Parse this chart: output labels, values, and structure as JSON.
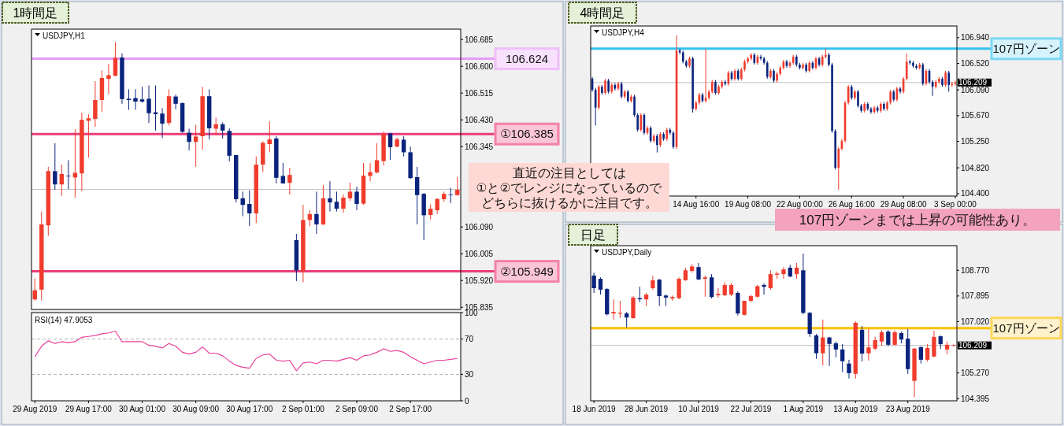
{
  "chart_data": [
    {
      "type": "candlestick",
      "title": "1時間足",
      "subtitle": "USDJPY,H1",
      "tick_labels": "y",
      "categories": [
        null,
        null,
        null,
        null,
        null,
        null,
        null,
        null,
        null,
        null,
        null,
        null,
        null,
        null,
        null,
        null,
        null,
        null,
        null,
        null,
        null,
        null,
        null,
        null,
        null,
        null,
        null,
        null,
        null,
        null,
        null,
        null,
        null,
        null,
        null,
        null,
        null,
        null,
        null,
        null,
        null,
        null,
        null,
        null,
        null,
        null,
        null,
        null,
        null,
        null,
        null,
        null,
        null,
        null,
        null,
        null,
        null,
        null,
        null,
        null,
        null,
        null,
        null,
        null
      ],
      "ohlc": [
        [
          105.86,
          105.927,
          105.856,
          105.889
        ],
        [
          105.891,
          106.139,
          105.856,
          106.098
        ],
        [
          106.095,
          106.281,
          106.062,
          106.267
        ],
        [
          106.267,
          106.356,
          106.208,
          106.225
        ],
        [
          106.225,
          106.288,
          106.189,
          106.258
        ],
        [
          106.253,
          106.302,
          106.21,
          106.252
        ],
        [
          106.247,
          106.4,
          106.183,
          106.262
        ],
        [
          106.26,
          106.453,
          106.204,
          106.43
        ],
        [
          106.427,
          106.448,
          106.31,
          106.435
        ],
        [
          106.433,
          106.553,
          106.408,
          106.493
        ],
        [
          106.493,
          106.587,
          106.456,
          106.563
        ],
        [
          106.56,
          106.607,
          106.512,
          106.572
        ],
        [
          106.57,
          106.677,
          106.568,
          106.627
        ],
        [
          106.628,
          106.641,
          106.481,
          106.496
        ],
        [
          106.497,
          106.527,
          106.462,
          106.493
        ],
        [
          106.499,
          106.527,
          106.462,
          106.488
        ],
        [
          106.495,
          106.535,
          106.485,
          106.488
        ],
        [
          106.497,
          106.539,
          106.42,
          106.451
        ],
        [
          106.454,
          106.539,
          106.396,
          106.448
        ],
        [
          106.45,
          106.467,
          106.372,
          106.418
        ],
        [
          106.42,
          106.527,
          106.412,
          106.505
        ],
        [
          106.504,
          106.51,
          106.464,
          106.481
        ],
        [
          106.483,
          106.485,
          106.389,
          106.392
        ],
        [
          106.389,
          106.402,
          106.333,
          106.36
        ],
        [
          106.36,
          106.414,
          106.281,
          106.377
        ],
        [
          106.378,
          106.535,
          106.335,
          106.505
        ],
        [
          106.505,
          106.527,
          106.368,
          106.403
        ],
        [
          106.402,
          106.437,
          106.381,
          106.416
        ],
        [
          106.416,
          106.422,
          106.371,
          106.396
        ],
        [
          106.395,
          106.403,
          106.298,
          106.316
        ],
        [
          106.318,
          106.318,
          106.168,
          106.178
        ],
        [
          106.181,
          106.202,
          106.124,
          106.16
        ],
        [
          106.163,
          106.206,
          106.093,
          106.133
        ],
        [
          106.133,
          106.314,
          106.102,
          106.288
        ],
        [
          106.288,
          106.362,
          106.264,
          106.357
        ],
        [
          106.353,
          106.425,
          106.327,
          106.368
        ],
        [
          106.371,
          106.378,
          106.228,
          106.246
        ],
        [
          106.252,
          106.293,
          106.228,
          106.228
        ],
        [
          106.23,
          106.278,
          106.193,
          106.255
        ],
        [
          106.048,
          106.068,
          105.918,
          105.952
        ],
        [
          105.95,
          106.16,
          105.914,
          106.112
        ],
        [
          106.112,
          106.143,
          106.092,
          106.131
        ],
        [
          106.131,
          106.202,
          106.068,
          106.098
        ],
        [
          106.098,
          106.223,
          106.096,
          106.181
        ],
        [
          106.181,
          106.235,
          106.139,
          106.168
        ],
        [
          106.17,
          106.202,
          106.139,
          106.148
        ],
        [
          106.148,
          106.193,
          106.135,
          106.183
        ],
        [
          106.181,
          106.231,
          106.173,
          106.202
        ],
        [
          106.202,
          106.218,
          106.143,
          106.163
        ],
        [
          106.164,
          106.293,
          106.16,
          106.253
        ],
        [
          106.252,
          106.293,
          106.235,
          106.264
        ],
        [
          106.263,
          106.356,
          106.26,
          106.302
        ],
        [
          106.299,
          106.393,
          106.285,
          106.385
        ],
        [
          106.387,
          106.389,
          106.303,
          106.343
        ],
        [
          106.345,
          106.374,
          106.343,
          106.368
        ],
        [
          106.367,
          106.378,
          106.314,
          106.327
        ],
        [
          106.327,
          106.345,
          106.243,
          106.245
        ],
        [
          106.248,
          106.281,
          106.098,
          106.191
        ],
        [
          106.195,
          106.198,
          106.048,
          106.127
        ],
        [
          106.128,
          106.162,
          106.114,
          106.148
        ],
        [
          106.143,
          106.181,
          106.131,
          106.179
        ],
        [
          106.178,
          106.202,
          106.17,
          106.195
        ],
        [
          106.193,
          106.214,
          106.166,
          106.192
        ],
        [
          106.191,
          106.248,
          106.189,
          106.208
        ]
      ],
      "colors": [
        "#f03c2d",
        "#f03c2d",
        "#f03c2d",
        "#0a237d",
        "#f03c2d",
        "#0a237d",
        "#f03c2d",
        "#f03c2d",
        "#f03c2d",
        "#f03c2d",
        "#f03c2d",
        "#f03c2d",
        "#f03c2d",
        "#0a237d",
        "#0a237d",
        "#0a237d",
        "#0a237d",
        "#0a237d",
        "#0a237d",
        "#0a237d",
        "#f03c2d",
        "#0a237d",
        "#0a237d",
        "#0a237d",
        "#f03c2d",
        "#f03c2d",
        "#0a237d",
        "#f03c2d",
        "#0a237d",
        "#0a237d",
        "#0a237d",
        "#0a237d",
        "#0a237d",
        "#f03c2d",
        "#f03c2d",
        "#f03c2d",
        "#0a237d",
        "#0a237d",
        "#f03c2d",
        "#0a237d",
        "#f03c2d",
        "#f03c2d",
        "#0a237d",
        "#f03c2d",
        "#0a237d",
        "#0a237d",
        "#f03c2d",
        "#f03c2d",
        "#0a237d",
        "#f03c2d",
        "#f03c2d",
        "#f03c2d",
        "#f03c2d",
        "#0a237d",
        "#f03c2d",
        "#0a237d",
        "#0a237d",
        "#0a237d",
        "#0a237d",
        "#f03c2d",
        "#f03c2d",
        "#f03c2d",
        "#0a237d",
        "#f03c2d"
      ],
      "ylim": [
        105.828,
        106.718
      ],
      "yticks": [
        106.685,
        {
          "value": 106.6,
          "label": "106.600"
        },
        106.515,
        {
          "value": 106.43,
          "label": "106.430"
        },
        106.345,
        {
          "value": 106.09,
          "label": "106.090"
        },
        106.005,
        {
          "value": 105.92,
          "label": "105.920"
        },
        105.835
      ],
      "ref_lines": [
        {
          "axis": "y",
          "value": 106.209,
          "color": "#c0c0c0"
        },
        {
          "axis": "y",
          "value": 106.624,
          "label": "106.624",
          "color": "#e69cf5"
        },
        {
          "axis": "y",
          "value": 106.385,
          "label": "①106.385",
          "color": "#ec3d7a"
        },
        {
          "axis": "y",
          "value": 105.949,
          "label": "②105.949",
          "color": "#ec3d7a"
        }
      ],
      "annotations": [
        "直近の注目としては",
        "①と②でレンジになっているので",
        "どちらに抜けるかに注目です。"
      ]
    },
    {
      "type": "line",
      "title": "RSI(14) 47.9053",
      "categories": [
        "29 Aug 2019",
        null,
        null,
        null,
        null,
        null,
        null,
        null,
        "29 Aug 17:00",
        null,
        null,
        null,
        null,
        null,
        null,
        null,
        "30 Aug 01:00",
        null,
        null,
        null,
        null,
        null,
        null,
        null,
        "30 Aug 09:00",
        null,
        null,
        null,
        null,
        null,
        null,
        null,
        "30 Aug 17:00",
        null,
        null,
        null,
        null,
        null,
        null,
        null,
        "2 Sep 01:00",
        null,
        null,
        null,
        null,
        null,
        null,
        null,
        "2 Sep 09:00",
        null,
        null,
        null,
        null,
        null,
        null,
        null,
        "2 Sep 17:00",
        null,
        null,
        null,
        null,
        null,
        null,
        null
      ],
      "series": [
        {
          "color": "#e8409a",
          "values": [
            50,
            62,
            68,
            65,
            67,
            66,
            67,
            72,
            73,
            74,
            76,
            77,
            79,
            67,
            67,
            67,
            67,
            63,
            62,
            60,
            65,
            62,
            55,
            53,
            55,
            61,
            54,
            54,
            51,
            45,
            40,
            38,
            37,
            48,
            52,
            53,
            46,
            45,
            46,
            34,
            43,
            44,
            42,
            46,
            46,
            45,
            47,
            49,
            46,
            51,
            52,
            55,
            59,
            56,
            57,
            55,
            50,
            46,
            42,
            44,
            46,
            46,
            47,
            48
          ]
        }
      ],
      "ylim": [
        0,
        100
      ],
      "yticks": [
        0,
        30,
        70,
        100
      ],
      "ref_lines": [
        {
          "axis": "y",
          "value": 70,
          "color": "#b0b0b0",
          "line_style": "dashed"
        },
        {
          "axis": "y",
          "value": 30,
          "color": "#b0b0b0",
          "line_style": "dashed"
        }
      ]
    },
    {
      "type": "candlestick",
      "title": "4時間足",
      "subtitle": "USDJPY,H4",
      "categories": [
        null,
        null,
        null,
        null,
        null,
        null,
        null,
        null,
        null,
        null,
        null,
        null,
        null,
        null,
        null,
        null,
        null,
        null,
        null,
        null,
        null,
        null,
        null,
        null,
        null,
        null,
        null,
        null,
        null,
        null,
        null,
        null,
        "14 Aug 16:00",
        null,
        null,
        null,
        null,
        null,
        null,
        null,
        null,
        null,
        null,
        null,
        null,
        null,
        null,
        null,
        "19 Aug 08:00",
        null,
        null,
        null,
        null,
        null,
        null,
        null,
        null,
        null,
        null,
        null,
        null,
        null,
        null,
        null,
        "22 Aug 00:00",
        null,
        null,
        null,
        null,
        null,
        null,
        null,
        null,
        null,
        null,
        null,
        null,
        null,
        null,
        null,
        "26 Aug 16:00",
        null,
        null,
        null,
        null,
        null,
        null,
        null,
        null,
        null,
        null,
        null,
        null,
        null,
        null,
        null,
        "29 Aug 08:00",
        null,
        null,
        null,
        null,
        null,
        null,
        null,
        null,
        null,
        null,
        null,
        null,
        null,
        null,
        null,
        "3 Sep 00:00"
      ],
      "ohlc": [
        [
          106.27,
          106.3,
          106.06,
          106.09
        ],
        [
          106.09,
          106.12,
          105.51,
          105.8
        ],
        [
          105.8,
          106.17,
          105.77,
          106.14
        ],
        [
          106.14,
          106.17,
          106.01,
          106.04
        ],
        [
          106.04,
          106.27,
          106.01,
          106.24
        ],
        [
          106.24,
          106.27,
          106.03,
          106.06
        ],
        [
          106.06,
          106.2,
          106.03,
          106.17
        ],
        [
          106.17,
          106.2,
          106.08,
          106.11
        ],
        [
          106.11,
          106.22,
          106.08,
          106.19
        ],
        [
          106.19,
          106.22,
          105.95,
          105.98
        ],
        [
          105.98,
          106.09,
          105.95,
          106.06
        ],
        [
          106.06,
          106.09,
          105.88,
          105.91
        ],
        [
          105.91,
          106.01,
          105.88,
          105.98
        ],
        [
          105.98,
          106.01,
          105.65,
          105.68
        ],
        [
          105.68,
          105.71,
          105.41,
          105.44
        ],
        [
          105.44,
          105.71,
          105.41,
          105.68
        ],
        [
          105.68,
          105.71,
          105.36,
          105.39
        ],
        [
          105.39,
          105.5,
          105.36,
          105.47
        ],
        [
          105.47,
          105.5,
          105.23,
          105.26
        ],
        [
          105.26,
          105.37,
          105.23,
          105.34
        ],
        [
          105.34,
          105.37,
          105.07,
          105.19
        ],
        [
          105.19,
          105.4,
          105.16,
          105.37
        ],
        [
          105.37,
          105.4,
          105.26,
          105.29
        ],
        [
          105.29,
          105.47,
          105.26,
          105.44
        ],
        [
          105.44,
          105.47,
          105.36,
          105.39
        ],
        [
          105.39,
          105.42,
          105.13,
          105.16
        ],
        [
          105.16,
          106.98,
          105.13,
          106.73
        ],
        [
          106.73,
          106.76,
          106.67,
          106.7
        ],
        [
          106.7,
          106.73,
          106.52,
          106.55
        ],
        [
          106.55,
          106.58,
          106.45,
          106.48
        ],
        [
          106.48,
          106.63,
          106.45,
          106.6
        ],
        [
          106.6,
          106.63,
          105.72,
          105.78
        ],
        [
          105.78,
          105.91,
          105.75,
          105.88
        ],
        [
          105.88,
          106.04,
          105.85,
          106.01
        ],
        [
          106.01,
          106.04,
          105.88,
          105.91
        ],
        [
          105.91,
          106.76,
          105.88,
          105.96
        ],
        [
          105.96,
          106.09,
          105.93,
          106.06
        ],
        [
          106.06,
          106.25,
          106.03,
          106.22
        ],
        [
          106.22,
          106.25,
          106.01,
          106.04
        ],
        [
          106.04,
          106.17,
          106.01,
          106.14
        ],
        [
          106.14,
          106.25,
          106.11,
          106.22
        ],
        [
          106.22,
          106.25,
          106.16,
          106.19
        ],
        [
          106.19,
          106.4,
          106.16,
          106.37
        ],
        [
          106.37,
          106.4,
          106.24,
          106.27
        ],
        [
          106.27,
          106.43,
          106.24,
          106.4
        ],
        [
          106.4,
          106.43,
          106.24,
          106.27
        ],
        [
          106.27,
          106.45,
          106.24,
          106.42
        ],
        [
          106.42,
          106.58,
          106.39,
          106.55
        ],
        [
          106.55,
          106.63,
          106.52,
          106.6
        ],
        [
          106.6,
          106.69,
          106.57,
          106.66
        ],
        [
          106.66,
          106.69,
          106.5,
          106.53
        ],
        [
          106.53,
          106.66,
          106.5,
          106.63
        ],
        [
          106.63,
          106.66,
          106.57,
          106.6
        ],
        [
          106.6,
          106.63,
          106.5,
          106.53
        ],
        [
          106.53,
          106.56,
          106.27,
          106.3
        ],
        [
          106.3,
          106.43,
          106.27,
          106.4
        ],
        [
          106.4,
          106.43,
          106.21,
          106.24
        ],
        [
          106.24,
          106.38,
          106.21,
          106.35
        ],
        [
          106.35,
          106.48,
          106.32,
          106.45
        ],
        [
          106.45,
          106.58,
          106.42,
          106.55
        ],
        [
          106.55,
          106.58,
          106.45,
          106.48
        ],
        [
          106.48,
          106.56,
          106.45,
          106.53
        ],
        [
          106.53,
          106.66,
          106.5,
          106.63
        ],
        [
          106.63,
          106.66,
          106.47,
          106.5
        ],
        [
          106.5,
          106.53,
          106.42,
          106.45
        ],
        [
          106.45,
          106.53,
          106.42,
          106.5
        ],
        [
          106.5,
          106.53,
          106.37,
          106.4
        ],
        [
          106.4,
          106.56,
          106.37,
          106.53
        ],
        [
          106.53,
          106.56,
          106.42,
          106.45
        ],
        [
          106.45,
          106.63,
          106.42,
          106.6
        ],
        [
          106.6,
          106.63,
          106.47,
          106.5
        ],
        [
          106.5,
          106.66,
          106.47,
          106.63
        ],
        [
          106.63,
          106.76,
          106.6,
          106.66
        ],
        [
          106.66,
          106.69,
          106.47,
          106.5
        ],
        [
          106.5,
          106.53,
          105.39,
          105.42
        ],
        [
          105.42,
          105.45,
          104.79,
          104.82
        ],
        [
          104.82,
          105.16,
          104.46,
          105.13
        ],
        [
          105.13,
          105.29,
          105.1,
          105.26
        ],
        [
          105.26,
          105.91,
          105.23,
          105.88
        ],
        [
          105.88,
          106.17,
          105.85,
          106.14
        ],
        [
          106.14,
          106.17,
          105.93,
          105.96
        ],
        [
          105.96,
          106.09,
          105.93,
          106.06
        ],
        [
          106.06,
          106.09,
          105.8,
          105.83
        ],
        [
          105.83,
          105.86,
          105.72,
          105.75
        ],
        [
          105.75,
          105.89,
          105.72,
          105.86
        ],
        [
          105.86,
          105.89,
          105.75,
          105.78
        ],
        [
          105.78,
          105.81,
          105.7,
          105.73
        ],
        [
          105.73,
          105.83,
          105.7,
          105.8
        ],
        [
          105.8,
          105.83,
          105.72,
          105.75
        ],
        [
          105.75,
          105.89,
          105.72,
          105.86
        ],
        [
          105.86,
          105.89,
          105.75,
          105.78
        ],
        [
          105.78,
          105.91,
          105.75,
          105.88
        ],
        [
          105.88,
          106.09,
          105.85,
          106.06
        ],
        [
          106.06,
          106.09,
          105.9,
          105.93
        ],
        [
          105.93,
          106.14,
          105.9,
          106.11
        ],
        [
          106.11,
          106.14,
          106.03,
          106.06
        ],
        [
          106.06,
          106.3,
          106.03,
          106.27
        ],
        [
          106.27,
          106.68,
          106.24,
          106.55
        ],
        [
          106.55,
          106.58,
          106.5,
          106.53
        ],
        [
          106.53,
          106.56,
          106.45,
          106.48
        ],
        [
          106.48,
          106.51,
          106.42,
          106.45
        ],
        [
          106.45,
          106.53,
          106.42,
          106.5
        ],
        [
          106.5,
          106.53,
          106.16,
          106.19
        ],
        [
          106.19,
          106.43,
          106.16,
          106.4
        ],
        [
          106.4,
          106.43,
          106.19,
          106.22
        ],
        [
          106.22,
          106.25,
          105.99,
          106.14
        ],
        [
          106.14,
          106.25,
          106.11,
          106.22
        ],
        [
          106.22,
          106.3,
          106.19,
          106.27
        ],
        [
          106.27,
          106.3,
          106.14,
          106.17
        ],
        [
          106.17,
          106.4,
          106.14,
          106.37
        ],
        [
          106.37,
          106.4,
          106.06,
          106.17
        ],
        [
          106.17,
          106.22,
          106.14,
          106.19
        ],
        [
          106.19,
          106.24,
          106.16,
          106.21
        ]
      ],
      "colors": [
        "#0a237d",
        "#0a237d",
        "#f03c2d",
        "#0a237d",
        "#f03c2d",
        "#0a237d",
        "#f03c2d",
        "#0a237d",
        "#f03c2d",
        "#0a237d",
        "#f03c2d",
        "#0a237d",
        "#f03c2d",
        "#0a237d",
        "#0a237d",
        "#f03c2d",
        "#0a237d",
        "#f03c2d",
        "#0a237d",
        "#f03c2d",
        "#0a237d",
        "#f03c2d",
        "#0a237d",
        "#f03c2d",
        "#0a237d",
        "#0a237d",
        "#f03c2d",
        "#0a237d",
        "#0a237d",
        "#0a237d",
        "#f03c2d",
        "#0a237d",
        "#f03c2d",
        "#f03c2d",
        "#0a237d",
        "#f03c2d",
        "#f03c2d",
        "#f03c2d",
        "#0a237d",
        "#f03c2d",
        "#f03c2d",
        "#0a237d",
        "#f03c2d",
        "#0a237d",
        "#f03c2d",
        "#0a237d",
        "#f03c2d",
        "#f03c2d",
        "#f03c2d",
        "#f03c2d",
        "#0a237d",
        "#f03c2d",
        "#0a237d",
        "#0a237d",
        "#0a237d",
        "#f03c2d",
        "#0a237d",
        "#f03c2d",
        "#f03c2d",
        "#f03c2d",
        "#0a237d",
        "#f03c2d",
        "#f03c2d",
        "#0a237d",
        "#0a237d",
        "#f03c2d",
        "#0a237d",
        "#f03c2d",
        "#0a237d",
        "#f03c2d",
        "#0a237d",
        "#f03c2d",
        "#f03c2d",
        "#0a237d",
        "#0a237d",
        "#0a237d",
        "#f03c2d",
        "#f03c2d",
        "#f03c2d",
        "#f03c2d",
        "#0a237d",
        "#f03c2d",
        "#0a237d",
        "#0a237d",
        "#f03c2d",
        "#0a237d",
        "#0a237d",
        "#f03c2d",
        "#0a237d",
        "#f03c2d",
        "#0a237d",
        "#f03c2d",
        "#f03c2d",
        "#0a237d",
        "#f03c2d",
        "#0a237d",
        "#f03c2d",
        "#f03c2d",
        "#0a237d",
        "#0a237d",
        "#0a237d",
        "#f03c2d",
        "#0a237d",
        "#f03c2d",
        "#0a237d",
        "#0a237d",
        "#f03c2d",
        "#f03c2d",
        "#0a237d",
        "#f03c2d",
        "#0a237d",
        "#f03c2d",
        "#f03c2d"
      ],
      "ylim": [
        104.36,
        107.13
      ],
      "yticks": [
        {
          "value": 106.94,
          "label": "106.940"
        },
        {
          "value": 106.52,
          "label": "106.520"
        },
        {
          "value": 106.09,
          "label": "106.090"
        },
        {
          "value": 105.67,
          "label": "105.670"
        },
        {
          "value": 105.25,
          "label": "105.250"
        },
        {
          "value": 104.82,
          "label": "104.820"
        },
        {
          "value": 104.4,
          "label": "104.400"
        }
      ],
      "ref_lines": [
        {
          "axis": "y",
          "value": 106.209,
          "label": "106.209",
          "color": "#c0c0c0"
        },
        {
          "axis": "y",
          "value": 106.76,
          "label": "107円ゾーン",
          "color": "#33c3f0"
        }
      ],
      "annotations": [
        "107円ゾーンまでは上昇の可能性あり。"
      ]
    },
    {
      "type": "candlestick",
      "title": "日足",
      "subtitle": "USDJPY,Daily",
      "categories": [
        "18 Jun 2019",
        null,
        null,
        null,
        null,
        null,
        null,
        null,
        "28 Jun 2019",
        null,
        null,
        null,
        null,
        null,
        null,
        null,
        "10 Jul 2019",
        null,
        null,
        null,
        null,
        null,
        null,
        null,
        "22 Jul 2019",
        null,
        null,
        null,
        null,
        null,
        null,
        null,
        "1 Aug 2019",
        null,
        null,
        null,
        null,
        null,
        null,
        null,
        "13 Aug 2019",
        null,
        null,
        null,
        null,
        null,
        null,
        null,
        "23 Aug 2019",
        null,
        null,
        null,
        null,
        null,
        null,
        null
      ],
      "ohlc": [
        [
          108.59,
          108.69,
          108.0,
          108.16
        ],
        [
          108.48,
          108.53,
          107.94,
          108.11
        ],
        [
          108.13,
          108.16,
          107.23,
          107.27
        ],
        [
          107.3,
          107.78,
          107.09,
          107.35
        ],
        [
          107.29,
          107.73,
          107.14,
          107.32
        ],
        [
          107.3,
          107.35,
          106.82,
          107.16
        ],
        [
          107.14,
          107.89,
          107.12,
          107.84
        ],
        [
          107.82,
          108.21,
          107.68,
          107.78
        ],
        [
          107.78,
          108.0,
          107.55,
          107.94
        ],
        [
          108.16,
          108.59,
          108.11,
          108.43
        ],
        [
          108.45,
          108.48,
          107.55,
          107.89
        ],
        [
          107.91,
          107.94,
          107.55,
          107.84
        ],
        [
          107.81,
          107.91,
          107.73,
          107.86
        ],
        [
          107.82,
          108.53,
          107.78,
          108.48
        ],
        [
          108.43,
          108.86,
          108.41,
          108.77
        ],
        [
          108.75,
          108.98,
          108.69,
          108.9
        ],
        [
          108.88,
          109.02,
          108.43,
          108.46
        ],
        [
          108.48,
          108.59,
          107.87,
          108.53
        ],
        [
          108.53,
          108.64,
          107.81,
          107.86
        ],
        [
          107.92,
          108.16,
          107.84,
          107.97
        ],
        [
          107.92,
          108.37,
          107.89,
          108.27
        ],
        [
          107.94,
          108.34,
          107.89,
          108.27
        ],
        [
          108.0,
          108.05,
          107.23,
          107.3
        ],
        [
          107.25,
          107.73,
          107.23,
          107.73
        ],
        [
          107.73,
          107.94,
          107.68,
          107.89
        ],
        [
          107.87,
          108.27,
          107.84,
          108.23
        ],
        [
          108.27,
          108.32,
          107.94,
          108.21
        ],
        [
          108.16,
          108.77,
          108.11,
          108.64
        ],
        [
          108.62,
          108.73,
          108.48,
          108.66
        ],
        [
          108.64,
          108.88,
          108.48,
          108.8
        ],
        [
          108.86,
          108.96,
          108.53,
          108.56
        ],
        [
          108.64,
          109.02,
          108.48,
          108.86
        ],
        [
          108.77,
          109.34,
          107.27,
          107.32
        ],
        [
          107.32,
          107.35,
          106.5,
          106.6
        ],
        [
          106.55,
          106.6,
          105.75,
          105.94
        ],
        [
          105.94,
          107.09,
          105.53,
          106.48
        ],
        [
          106.48,
          106.5,
          105.51,
          106.26
        ],
        [
          106.28,
          106.34,
          105.8,
          106.07
        ],
        [
          106.07,
          106.26,
          105.3,
          105.67
        ],
        [
          105.59,
          105.72,
          105.08,
          105.26
        ],
        [
          105.24,
          107.03,
          105.08,
          106.98
        ],
        [
          106.74,
          106.87,
          105.66,
          105.93
        ],
        [
          105.94,
          106.77,
          105.69,
          106.14
        ],
        [
          106.1,
          106.5,
          106.05,
          106.39
        ],
        [
          106.34,
          106.73,
          106.2,
          106.66
        ],
        [
          106.68,
          106.73,
          106.18,
          106.23
        ],
        [
          106.23,
          106.73,
          106.2,
          106.66
        ],
        [
          106.63,
          106.68,
          106.28,
          106.41
        ],
        [
          106.44,
          106.77,
          105.24,
          105.4
        ],
        [
          105.0,
          106.12,
          104.44,
          106.1
        ],
        [
          106.15,
          106.18,
          105.59,
          105.72
        ],
        [
          105.72,
          106.26,
          105.66,
          106.12
        ],
        [
          105.83,
          106.71,
          105.8,
          106.5
        ],
        [
          106.52,
          106.55,
          106.09,
          106.25
        ],
        [
          106.07,
          106.34,
          105.91,
          106.23
        ],
        [
          106.2,
          106.25,
          106.18,
          106.21
        ]
      ],
      "colors": [
        "#0a237d",
        "#0a237d",
        "#0a237d",
        "#f03c2d",
        "#f03c2d",
        "#0a237d",
        "#f03c2d",
        "#0a237d",
        "#f03c2d",
        "#f03c2d",
        "#0a237d",
        "#0a237d",
        "#f03c2d",
        "#f03c2d",
        "#f03c2d",
        "#f03c2d",
        "#0a237d",
        "#f03c2d",
        "#0a237d",
        "#f03c2d",
        "#f03c2d",
        "#f03c2d",
        "#0a237d",
        "#f03c2d",
        "#f03c2d",
        "#f03c2d",
        "#0a237d",
        "#f03c2d",
        "#f03c2d",
        "#f03c2d",
        "#0a237d",
        "#f03c2d",
        "#0a237d",
        "#0a237d",
        "#0a237d",
        "#f03c2d",
        "#0a237d",
        "#0a237d",
        "#0a237d",
        "#0a237d",
        "#f03c2d",
        "#0a237d",
        "#f03c2d",
        "#f03c2d",
        "#f03c2d",
        "#0a237d",
        "#f03c2d",
        "#0a237d",
        "#0a237d",
        "#f03c2d",
        "#0a237d",
        "#f03c2d",
        "#f03c2d",
        "#0a237d",
        "#f03c2d",
        "#f03c2d"
      ],
      "ylim": [
        104.32,
        109.61
      ],
      "yticks": [
        {
          "value": 108.77,
          "label": "108.770"
        },
        107.895,
        {
          "value": 107.02,
          "label": "107.020"
        },
        {
          "value": 105.27,
          "label": "105.270"
        },
        104.395
      ],
      "ref_lines": [
        {
          "axis": "y",
          "value": 106.209,
          "label": "106.209",
          "color": "#c0c0c0"
        },
        {
          "axis": "y",
          "value": 106.8,
          "label": "107円ゾーン",
          "color": "#ffc000"
        }
      ]
    }
  ]
}
